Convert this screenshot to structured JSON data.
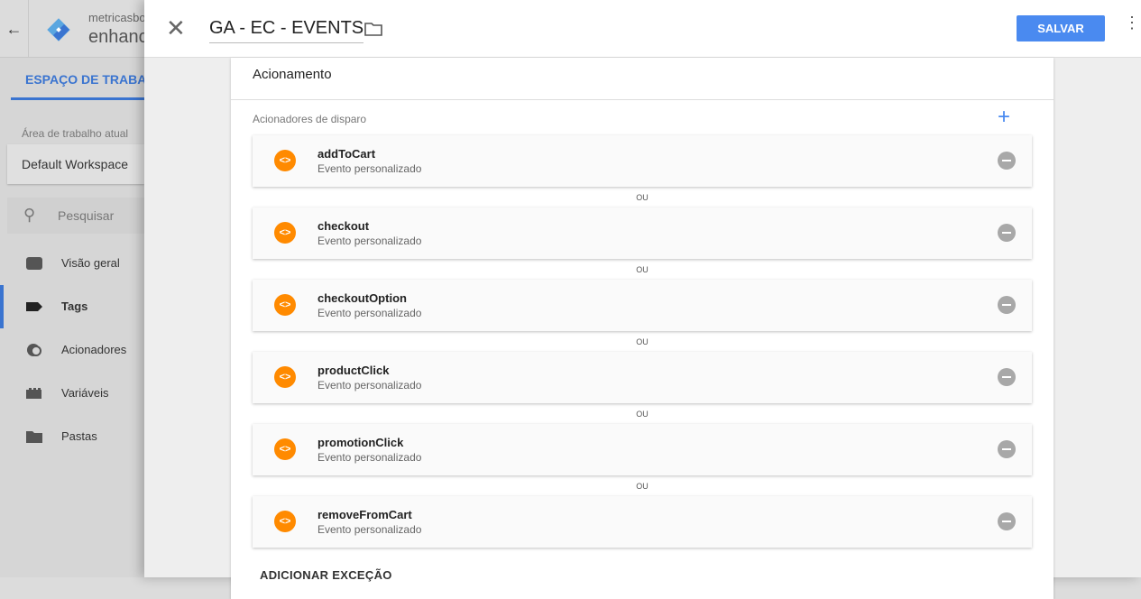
{
  "sidebar": {
    "account": "metricasbo",
    "container": "enhanc",
    "workspace_tab": "ESPAÇO DE TRABALHO",
    "current_workspace_label": "Área de trabalho atual",
    "workspace": "Default Workspace",
    "search_placeholder": "Pesquisar",
    "items": [
      {
        "label": "Visão geral",
        "icon": "overview-icon"
      },
      {
        "label": "Tags",
        "icon": "tag-icon",
        "active": true
      },
      {
        "label": "Acionadores",
        "icon": "trigger-icon"
      },
      {
        "label": "Variáveis",
        "icon": "variable-icon"
      },
      {
        "label": "Pastas",
        "icon": "folder-icon"
      }
    ]
  },
  "panel": {
    "title": "GA - EC - EVENTS",
    "save_label": "SALVAR",
    "section_title": "Acionamento",
    "triggers_label": "Acionadores de disparo",
    "or_label": "OU",
    "add_exception": "ADICIONAR EXCEÇÃO",
    "triggers": [
      {
        "name": "addToCart",
        "type": "Evento personalizado"
      },
      {
        "name": "checkout",
        "type": "Evento personalizado"
      },
      {
        "name": "checkoutOption",
        "type": "Evento personalizado"
      },
      {
        "name": "productClick",
        "type": "Evento personalizado"
      },
      {
        "name": "promotionClick",
        "type": "Evento personalizado"
      },
      {
        "name": "removeFromCart",
        "type": "Evento personalizado"
      }
    ]
  },
  "colors": {
    "accent": "#4a8af0",
    "trigger_icon": "#ff8a00"
  }
}
